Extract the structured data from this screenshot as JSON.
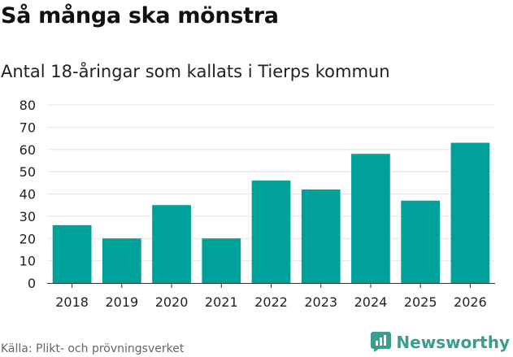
{
  "header": {
    "title": "Så många ska mönstra",
    "subtitle": "Antal 18-åringar som kallats i Tierps kommun"
  },
  "footer": {
    "source": "Källa: Plikt- och prövningsverket",
    "brand": "Newsworthy"
  },
  "colors": {
    "bar": "#00a199",
    "grid": "#e4e4e4",
    "brand": "#3a9e8e"
  },
  "chart_data": {
    "type": "bar",
    "title": "Så många ska mönstra",
    "subtitle": "Antal 18-åringar som kallats i Tierps kommun",
    "categories": [
      "2018",
      "2019",
      "2020",
      "2021",
      "2022",
      "2023",
      "2024",
      "2025",
      "2026"
    ],
    "values": [
      26,
      20,
      35,
      20,
      46,
      42,
      58,
      37,
      63
    ],
    "xlabel": "",
    "ylabel": "",
    "ylim": [
      0,
      80
    ],
    "yticks": [
      "0",
      "10",
      "20",
      "30",
      "40",
      "50",
      "60",
      "70",
      "80"
    ],
    "grid": true
  }
}
